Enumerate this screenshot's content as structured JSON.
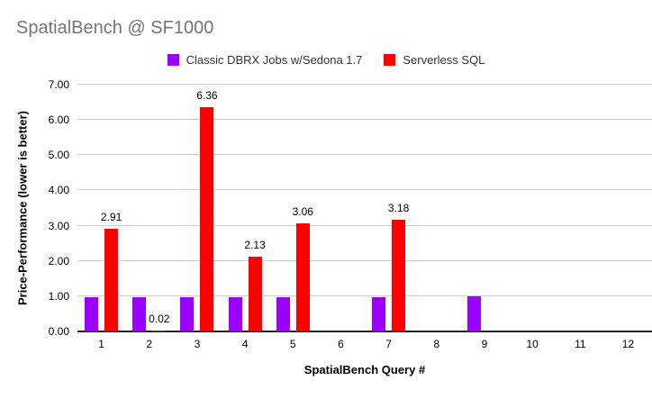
{
  "title": "SpatialBench @ SF1000",
  "legend": {
    "items": [
      {
        "label": "Classic DBRX Jobs w/Sedona 1.7",
        "color": "#9900ff"
      },
      {
        "label": "Serverless SQL",
        "color": "#ff0000"
      }
    ]
  },
  "chart_data": {
    "type": "bar",
    "title": "SpatialBench @ SF1000",
    "xlabel": "SpatialBench Query #",
    "ylabel": "Price-Performance (lower is better)",
    "categories": [
      "1",
      "2",
      "3",
      "4",
      "5",
      "6",
      "7",
      "8",
      "9",
      "10",
      "11",
      "12"
    ],
    "series": [
      {
        "name": "Classic DBRX Jobs w/Sedona 1.7",
        "color": "#9900ff",
        "values": [
          0.97,
          0.97,
          0.97,
          0.97,
          0.97,
          null,
          0.97,
          null,
          1.0,
          null,
          null,
          null
        ],
        "show_labels": false,
        "labels": [
          null,
          null,
          null,
          null,
          null,
          null,
          null,
          null,
          null,
          null,
          null,
          null
        ]
      },
      {
        "name": "Serverless SQL",
        "color": "#ff0000",
        "values": [
          2.91,
          0.02,
          6.36,
          2.13,
          3.06,
          null,
          3.18,
          null,
          null,
          null,
          null,
          null
        ],
        "show_labels": true,
        "labels": [
          "2.91",
          "0.02",
          "6.36",
          "2.13",
          "3.06",
          null,
          "3.18",
          null,
          null,
          null,
          null,
          null
        ]
      }
    ],
    "ylim": [
      0,
      7
    ],
    "ytick_step": 1,
    "ytick_labels": [
      "0.00",
      "1.00",
      "2.00",
      "3.00",
      "4.00",
      "5.00",
      "6.00",
      "7.00"
    ],
    "grid": true,
    "legend_position": "top"
  },
  "colors": {
    "title_text": "#757575",
    "grid": "#cccccc",
    "axis_line": "#212121",
    "tick_text": "#000000",
    "legend_text": "#333333",
    "background": "#ffffff"
  }
}
